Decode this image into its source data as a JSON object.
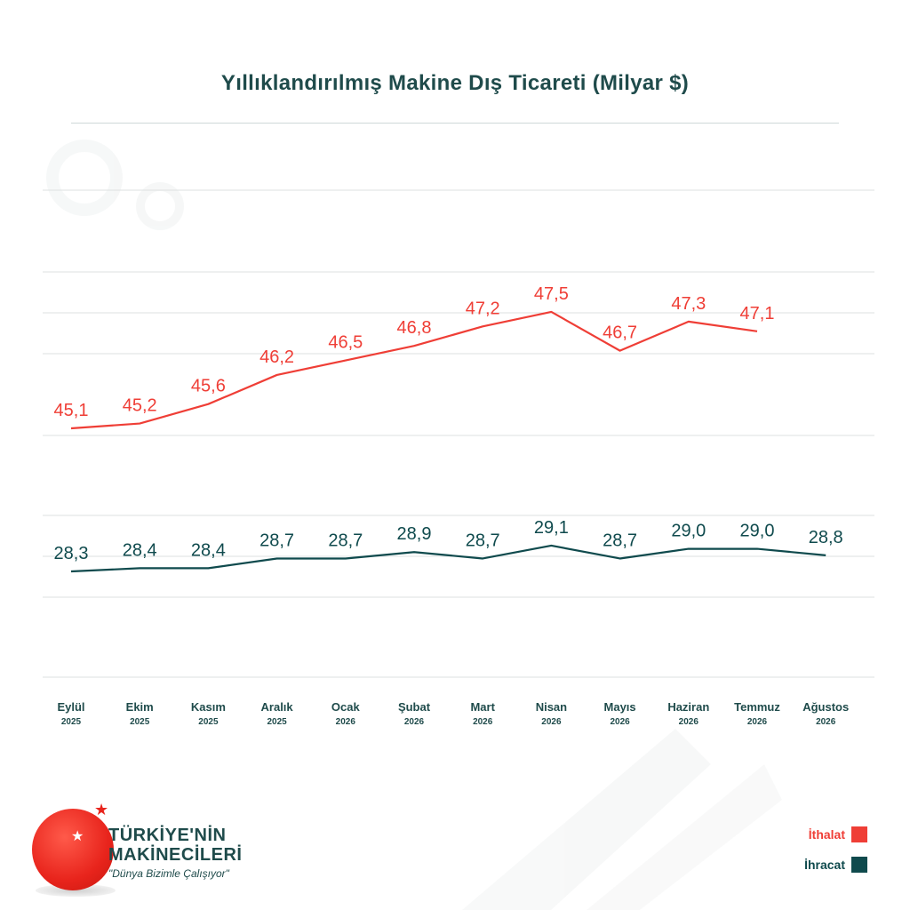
{
  "title": "Yıllıklandırılmış Makine Dış Ticareti (Milyar $)",
  "colors": {
    "import": "#ef3e36",
    "export": "#0f4a4d",
    "grid": "#dde2e2",
    "axis_text": "#1f4b4b"
  },
  "chart_data": {
    "type": "line",
    "categories": [
      [
        "Eylül",
        "2025"
      ],
      [
        "Ekim",
        "2025"
      ],
      [
        "Kasım",
        "2025"
      ],
      [
        "Aralık",
        "2025"
      ],
      [
        "Ocak",
        "2026"
      ],
      [
        "Şubat",
        "2026"
      ],
      [
        "Mart",
        "2026"
      ],
      [
        "Nisan",
        "2026"
      ],
      [
        "Mayıs",
        "2026"
      ],
      [
        "Haziran",
        "2026"
      ],
      [
        "Temmuz",
        "2026"
      ],
      [
        "Ağustos",
        "2026"
      ]
    ],
    "series": [
      {
        "name": "İthalat",
        "color": "#ef3e36",
        "values": [
          45.1,
          45.2,
          45.6,
          46.2,
          46.5,
          46.8,
          47.2,
          47.5,
          46.7,
          47.3,
          47.1,
          null
        ],
        "labels": [
          "45,1",
          "45,2",
          "45,6",
          "46,2",
          "46,5",
          "46,8",
          "47,2",
          "47,5",
          "46,7",
          "47,3",
          "47,1",
          ""
        ]
      },
      {
        "name": "İhracat",
        "color": "#0f4a4d",
        "values": [
          28.3,
          28.4,
          28.4,
          28.7,
          28.7,
          28.9,
          28.7,
          29.1,
          28.7,
          29.0,
          29.0,
          28.8
        ],
        "labels": [
          "28,3",
          "28,4",
          "28,4",
          "28,7",
          "28,7",
          "28,9",
          "28,7",
          "29,1",
          "28,7",
          "29,0",
          "29,0",
          "28,8"
        ]
      }
    ],
    "legend_position": "bottom-right",
    "grid": true
  },
  "legend": {
    "import_label": "İthalat",
    "export_label": "İhracat"
  },
  "logo": {
    "line1": "TÜRKİYE'NİN",
    "line2": "MAKİNECİLERİ",
    "tagline": "\"Dünya Bizimle Çalışıyor\""
  }
}
